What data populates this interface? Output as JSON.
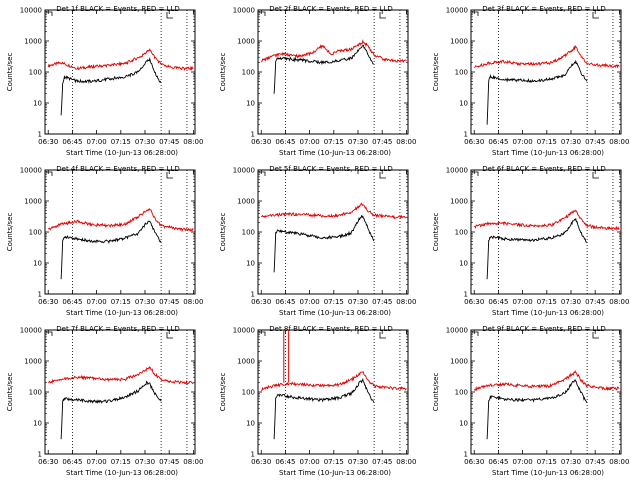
{
  "colors": {
    "events": "#000000",
    "lld": "#e00000",
    "axis": "#000000",
    "background": "#ffffff"
  },
  "ylabel": "Counts/sec",
  "xlabel": "Start Time (10-Jun-13 06:28:00)",
  "x_ticks": [
    "06:30",
    "06:45",
    "07:00",
    "07:15",
    "07:30",
    "07:45",
    "08:00"
  ],
  "y_ticks": [
    "1",
    "10",
    "100",
    "1000",
    "10000"
  ],
  "chart_data": [
    {
      "type": "line",
      "title": "Det 1f BLACK = Events, RED = LLD",
      "xlabel": "Start Time (10-Jun-13 06:28:00)",
      "ylabel": "Counts/sec",
      "x_unit": "minutes after 06:28:00",
      "xlim": [
        0,
        93
      ],
      "ylim": [
        1,
        10000
      ],
      "log_y": true,
      "vlines": [
        17,
        72,
        88
      ],
      "series": [
        {
          "name": "LLD",
          "color": "red",
          "x": [
            2,
            10,
            20,
            30,
            40,
            50,
            60,
            65,
            68,
            72,
            78,
            85,
            92
          ],
          "values": [
            160,
            200,
            130,
            150,
            165,
            190,
            330,
            520,
            300,
            180,
            140,
            130,
            130
          ]
        },
        {
          "name": "Events",
          "color": "black",
          "x": [
            10,
            11,
            12,
            20,
            30,
            40,
            50,
            58,
            63,
            65,
            68,
            70,
            72
          ],
          "values": [
            4,
            40,
            70,
            50,
            50,
            60,
            70,
            100,
            220,
            260,
            100,
            60,
            45
          ]
        }
      ]
    },
    {
      "type": "line",
      "title": "Det 2f BLACK = Events, RED = LLD",
      "xlabel": "Start Time (10-Jun-13 06:28:00)",
      "ylabel": "Counts/sec",
      "x_unit": "minutes after 06:28:00",
      "xlim": [
        0,
        93
      ],
      "ylim": [
        1,
        10000
      ],
      "log_y": true,
      "vlines": [
        17,
        72,
        88
      ],
      "series": [
        {
          "name": "LLD",
          "color": "red",
          "x": [
            2,
            10,
            15,
            20,
            25,
            30,
            35,
            40,
            45,
            50,
            58,
            65,
            68,
            72,
            78,
            85,
            92
          ],
          "values": [
            230,
            330,
            400,
            350,
            320,
            360,
            450,
            720,
            380,
            470,
            550,
            920,
            700,
            350,
            260,
            230,
            230
          ]
        },
        {
          "name": "Events",
          "color": "black",
          "x": [
            10,
            11,
            12,
            20,
            30,
            40,
            50,
            58,
            63,
            65,
            68,
            70,
            72
          ],
          "values": [
            20,
            200,
            280,
            260,
            230,
            200,
            230,
            280,
            550,
            750,
            400,
            240,
            180
          ]
        }
      ]
    },
    {
      "type": "line",
      "title": "Det 3f BLACK = Events, RED = LLD",
      "xlabel": "Start Time (10-Jun-13 06:28:00)",
      "ylabel": "Counts/sec",
      "x_unit": "minutes after 06:28:00",
      "xlim": [
        0,
        93
      ],
      "ylim": [
        1,
        10000
      ],
      "log_y": true,
      "vlines": [
        17,
        72,
        88
      ],
      "series": [
        {
          "name": "LLD",
          "color": "red",
          "x": [
            2,
            10,
            20,
            30,
            40,
            50,
            58,
            65,
            68,
            72,
            78,
            85,
            92
          ],
          "values": [
            140,
            190,
            220,
            180,
            180,
            200,
            330,
            650,
            340,
            190,
            170,
            160,
            150
          ]
        },
        {
          "name": "Events",
          "color": "black",
          "x": [
            10,
            11,
            12,
            20,
            30,
            40,
            50,
            58,
            63,
            65,
            68,
            70,
            72
          ],
          "values": [
            2,
            55,
            70,
            55,
            55,
            50,
            60,
            80,
            170,
            210,
            100,
            70,
            50
          ]
        }
      ]
    },
    {
      "type": "line",
      "title": "Det 4f BLACK = Events, RED = LLD",
      "xlabel": "Start Time (10-Jun-13 06:28:00)",
      "ylabel": "Counts/sec",
      "x_unit": "minutes after 06:28:00",
      "xlim": [
        0,
        93
      ],
      "ylim": [
        1,
        10000
      ],
      "log_y": true,
      "vlines": [
        17,
        72,
        88
      ],
      "series": [
        {
          "name": "LLD",
          "color": "red",
          "x": [
            2,
            10,
            20,
            30,
            40,
            50,
            58,
            65,
            68,
            72,
            78,
            85,
            92
          ],
          "values": [
            120,
            180,
            220,
            170,
            160,
            180,
            320,
            560,
            280,
            160,
            140,
            120,
            120
          ]
        },
        {
          "name": "Events",
          "color": "black",
          "x": [
            10,
            11,
            12,
            20,
            30,
            40,
            50,
            58,
            63,
            65,
            68,
            70,
            72
          ],
          "values": [
            3,
            55,
            70,
            60,
            50,
            50,
            65,
            90,
            200,
            230,
            100,
            65,
            45
          ]
        }
      ]
    },
    {
      "type": "line",
      "title": "Det 5f BLACK = Events, RED = LLD",
      "xlabel": "Start Time (10-Jun-13 06:28:00)",
      "ylabel": "Counts/sec",
      "x_unit": "minutes after 06:28:00",
      "xlim": [
        0,
        93
      ],
      "ylim": [
        1,
        10000
      ],
      "log_y": true,
      "vlines": [
        17,
        72,
        88
      ],
      "series": [
        {
          "name": "LLD",
          "color": "red",
          "x": [
            2,
            10,
            20,
            30,
            40,
            50,
            58,
            65,
            68,
            72,
            78,
            85,
            92
          ],
          "values": [
            310,
            350,
            380,
            360,
            330,
            340,
            450,
            820,
            480,
            350,
            320,
            300,
            300
          ]
        },
        {
          "name": "Events",
          "color": "black",
          "x": [
            10,
            11,
            12,
            20,
            30,
            40,
            50,
            58,
            63,
            65,
            68,
            70,
            72
          ],
          "values": [
            5,
            90,
            110,
            95,
            80,
            65,
            70,
            95,
            280,
            330,
            140,
            80,
            55
          ]
        }
      ]
    },
    {
      "type": "line",
      "title": "Det 6f BLACK = Events, RED = LLD",
      "xlabel": "Start Time (10-Jun-13 06:28:00)",
      "ylabel": "Counts/sec",
      "x_unit": "minutes after 06:28:00",
      "xlim": [
        0,
        93
      ],
      "ylim": [
        1,
        10000
      ],
      "log_y": true,
      "vlines": [
        17,
        72,
        88
      ],
      "series": [
        {
          "name": "LLD",
          "color": "red",
          "x": [
            2,
            10,
            20,
            30,
            40,
            50,
            58,
            65,
            68,
            72,
            78,
            85,
            92
          ],
          "values": [
            150,
            180,
            190,
            170,
            160,
            170,
            280,
            510,
            260,
            160,
            140,
            130,
            130
          ]
        },
        {
          "name": "Events",
          "color": "black",
          "x": [
            10,
            11,
            12,
            20,
            30,
            40,
            50,
            58,
            63,
            65,
            68,
            70,
            72
          ],
          "values": [
            3,
            55,
            70,
            60,
            55,
            55,
            65,
            90,
            210,
            260,
            100,
            65,
            45
          ]
        }
      ]
    },
    {
      "type": "line",
      "title": "Det 7f BLACK = Events, RED = LLD",
      "xlabel": "Start Time (10-Jun-13 06:28:00)",
      "ylabel": "Counts/sec",
      "x_unit": "minutes after 06:28:00",
      "xlim": [
        0,
        93
      ],
      "ylim": [
        1,
        10000
      ],
      "log_y": true,
      "vlines": [
        17,
        72,
        88
      ],
      "series": [
        {
          "name": "LLD",
          "color": "red",
          "x": [
            2,
            10,
            20,
            30,
            40,
            50,
            58,
            65,
            68,
            72,
            78,
            85,
            92
          ],
          "values": [
            200,
            260,
            300,
            280,
            250,
            260,
            380,
            620,
            380,
            250,
            220,
            200,
            200
          ]
        },
        {
          "name": "Events",
          "color": "black",
          "x": [
            10,
            11,
            12,
            20,
            30,
            40,
            50,
            58,
            63,
            65,
            68,
            70,
            72
          ],
          "values": [
            3,
            50,
            60,
            55,
            50,
            50,
            70,
            110,
            200,
            180,
            90,
            70,
            50
          ]
        }
      ]
    },
    {
      "type": "line",
      "title": "Det 8f BLACK = Events, RED = LLD",
      "xlabel": "Start Time (10-Jun-13 06:28:00)",
      "ylabel": "Counts/sec",
      "x_unit": "minutes after 06:28:00",
      "xlim": [
        0,
        93
      ],
      "ylim": [
        1,
        10000
      ],
      "log_y": true,
      "vlines": [
        17,
        72,
        88
      ],
      "spikes_lld": [
        [
          16,
          10000
        ],
        [
          19,
          10000
        ]
      ],
      "series": [
        {
          "name": "LLD",
          "color": "red",
          "x": [
            2,
            10,
            20,
            30,
            40,
            50,
            58,
            65,
            68,
            72,
            78,
            85,
            92
          ],
          "values": [
            120,
            160,
            190,
            170,
            160,
            170,
            250,
            440,
            240,
            160,
            140,
            130,
            130
          ]
        },
        {
          "name": "Events",
          "color": "black",
          "x": [
            10,
            11,
            12,
            20,
            30,
            40,
            50,
            58,
            63,
            65,
            68,
            70,
            72
          ],
          "values": [
            3,
            60,
            80,
            70,
            60,
            55,
            65,
            90,
            200,
            240,
            100,
            65,
            45
          ]
        }
      ]
    },
    {
      "type": "line",
      "title": "Det 9f BLACK = Events, RED = LLD",
      "xlabel": "Start Time (10-Jun-13 06:28:00)",
      "ylabel": "Counts/sec",
      "x_unit": "minutes after 06:28:00",
      "xlim": [
        0,
        93
      ],
      "ylim": [
        1,
        10000
      ],
      "log_y": true,
      "vlines": [
        17,
        72,
        88
      ],
      "series": [
        {
          "name": "LLD",
          "color": "red",
          "x": [
            2,
            10,
            20,
            30,
            40,
            50,
            58,
            65,
            68,
            72,
            78,
            85,
            92
          ],
          "values": [
            120,
            160,
            180,
            160,
            150,
            160,
            250,
            450,
            240,
            160,
            140,
            130,
            130
          ]
        },
        {
          "name": "Events",
          "color": "black",
          "x": [
            10,
            11,
            12,
            20,
            30,
            40,
            50,
            58,
            63,
            65,
            68,
            70,
            72
          ],
          "values": [
            3,
            55,
            70,
            60,
            55,
            55,
            65,
            90,
            200,
            230,
            100,
            65,
            45
          ]
        }
      ]
    }
  ]
}
